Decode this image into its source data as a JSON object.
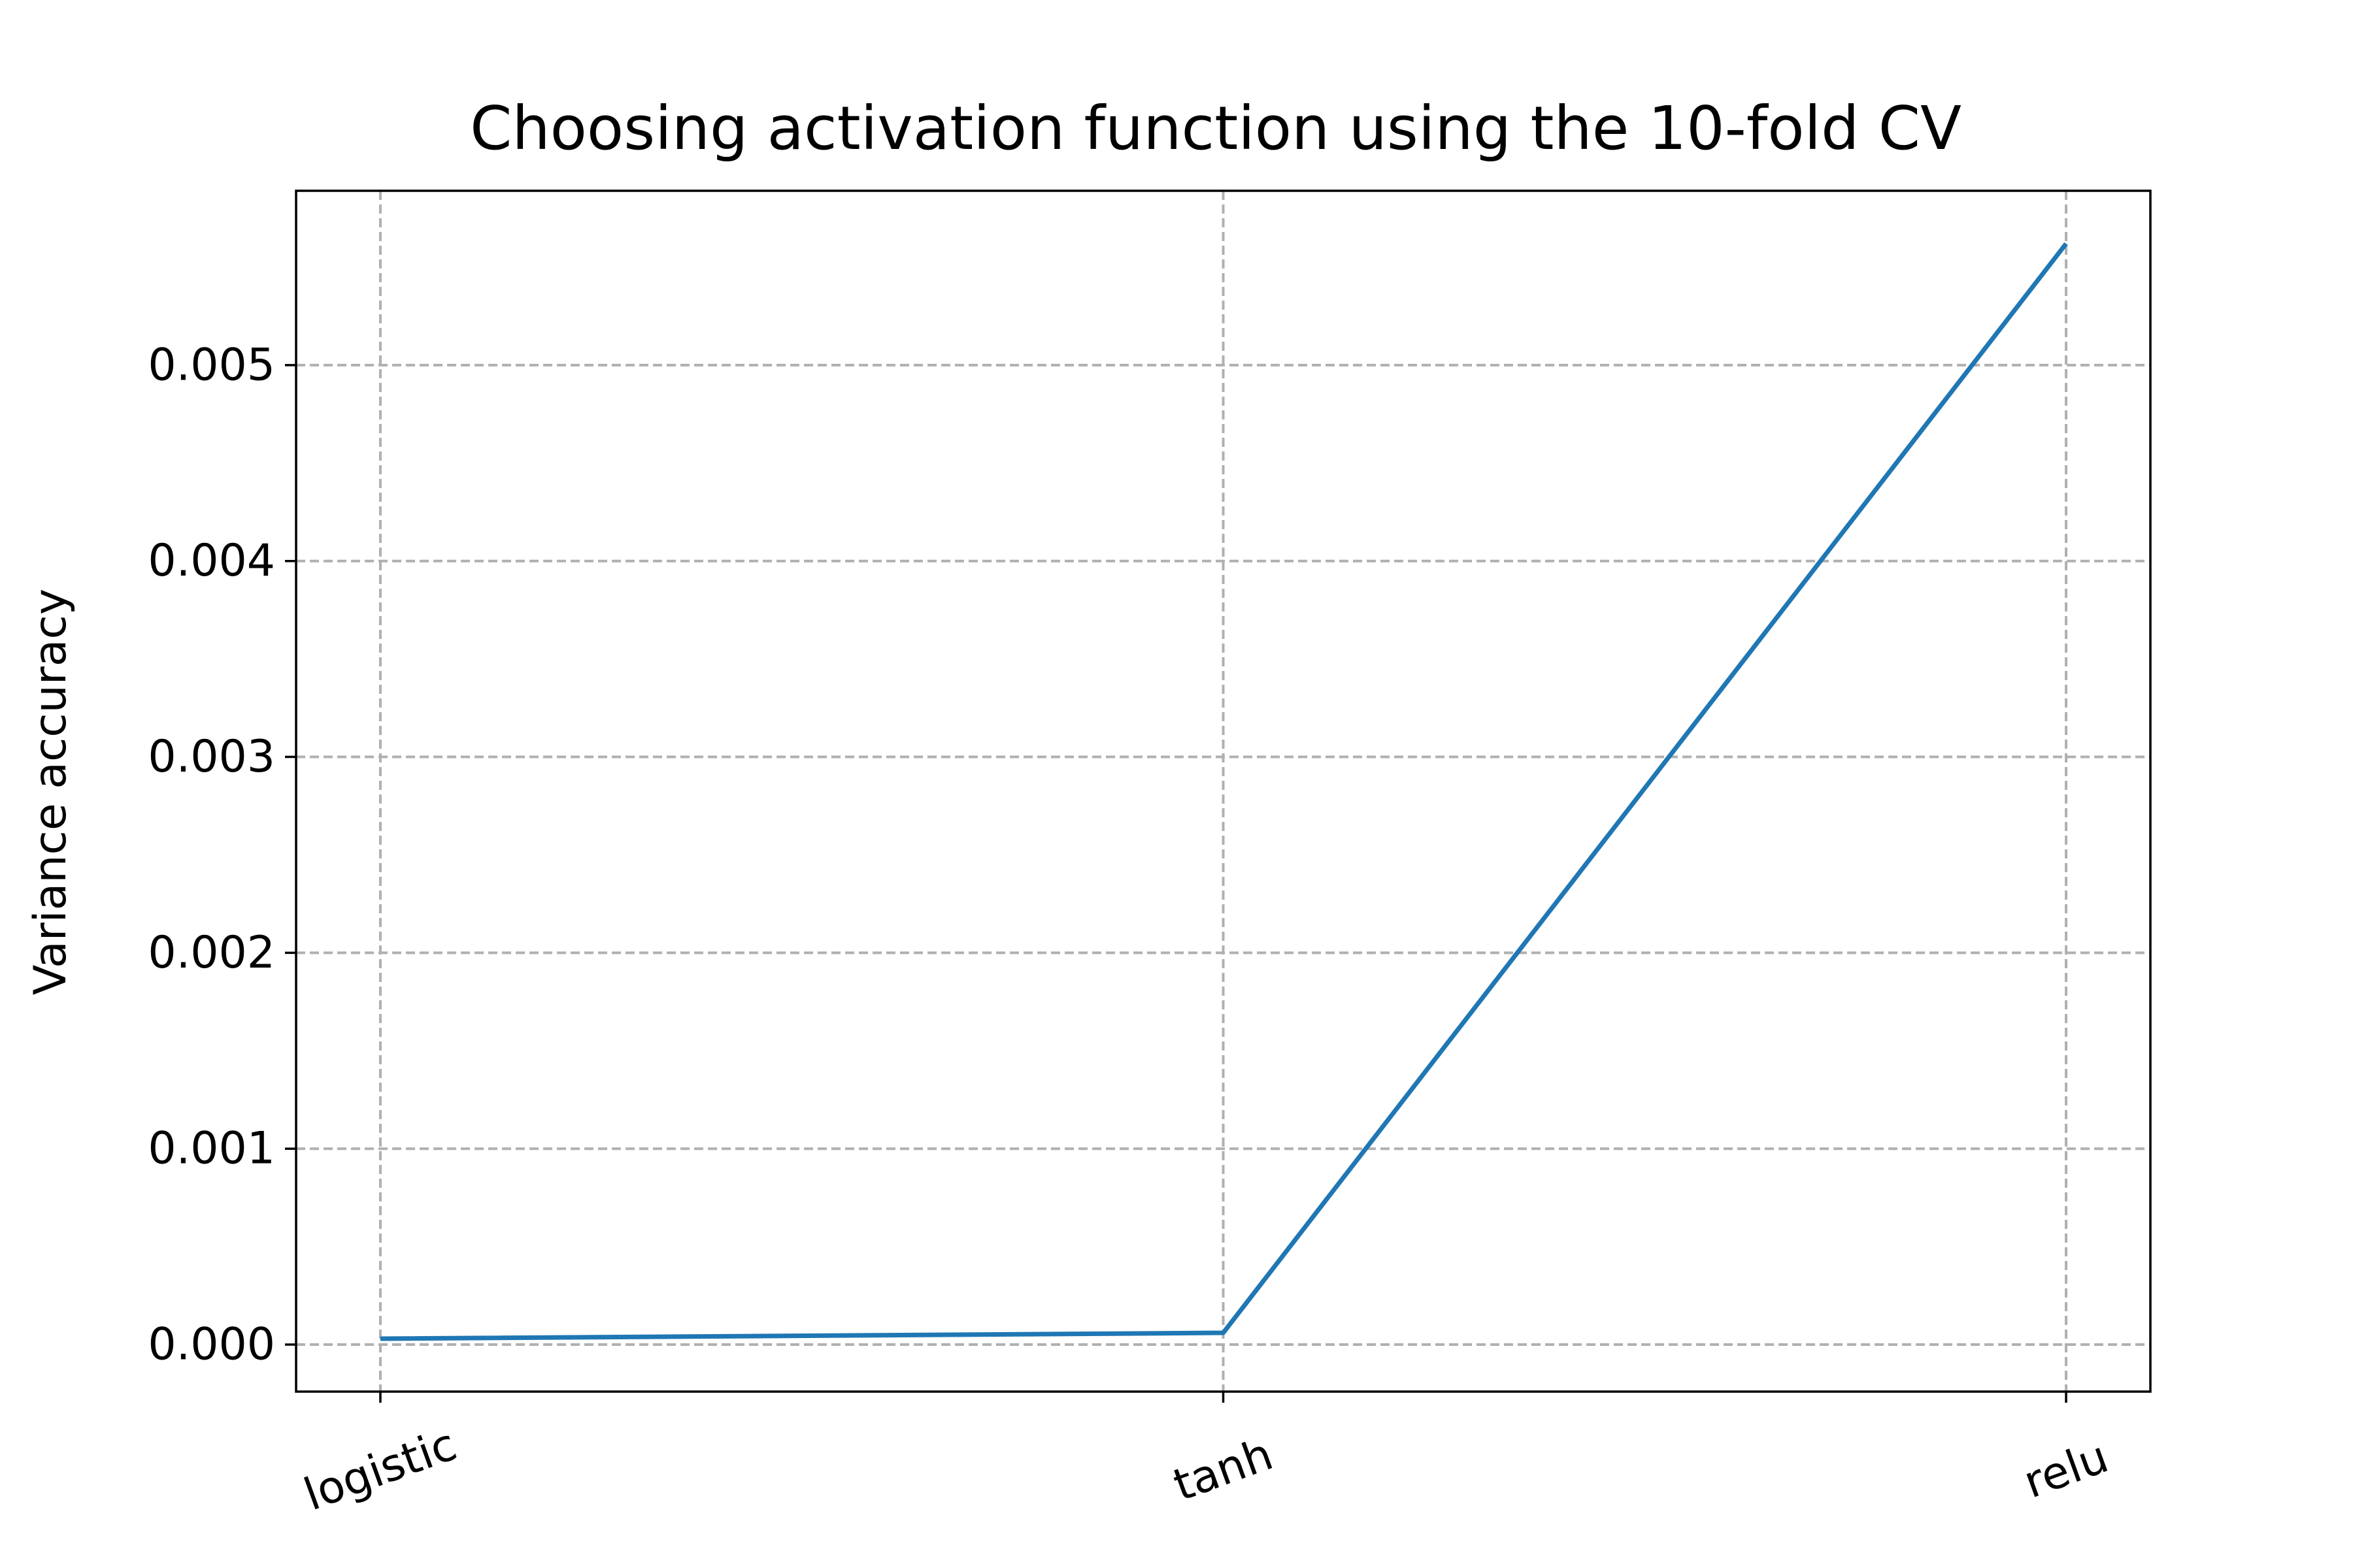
{
  "chart_data": {
    "type": "line",
    "title": "Choosing activation function using the 10-fold CV",
    "xlabel": "",
    "ylabel": "Variance accuracy",
    "categories": [
      "logistic",
      "tanh",
      "relu"
    ],
    "series": [
      {
        "values": [
          3e-05,
          6e-05,
          0.00562
        ],
        "color": "#1f77b4"
      }
    ],
    "yticks": [
      0.0,
      0.001,
      0.002,
      0.003,
      0.004,
      0.005
    ],
    "ytick_labels": [
      "0.000",
      "0.001",
      "0.002",
      "0.003",
      "0.004",
      "0.005"
    ],
    "ylim": [
      -0.00024,
      0.00589
    ],
    "x_tick_rotation_deg": -20,
    "grid": true,
    "grid_color": "#b0b0b0",
    "grid_style": "dashed",
    "legend": false
  }
}
